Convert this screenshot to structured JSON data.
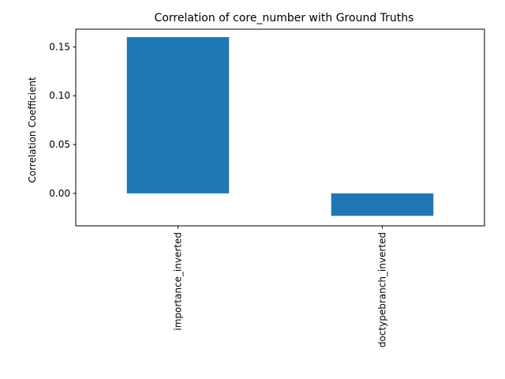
{
  "chart_data": {
    "type": "bar",
    "title": "Correlation of core_number with Ground Truths",
    "xlabel": "",
    "ylabel": "Correlation Coefficient",
    "categories": [
      "importance_inverted",
      "doctypebranch_inverted"
    ],
    "values": [
      0.16,
      -0.023
    ],
    "ylim": [
      -0.0332,
      0.1681
    ],
    "yticks": [
      0.0,
      0.05,
      0.1,
      0.15
    ],
    "ytick_labels": [
      "0.00",
      "0.05",
      "0.10",
      "0.15"
    ],
    "bar_color": "#1f77b4",
    "grid": false,
    "legend": "none"
  }
}
